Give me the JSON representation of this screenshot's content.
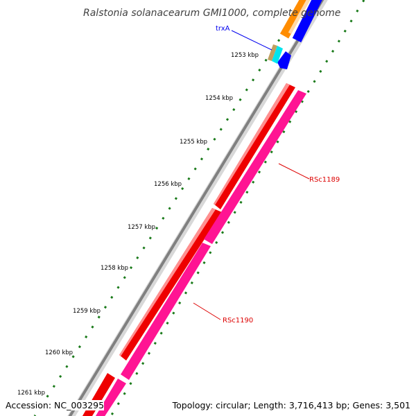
{
  "title": "Ralstonia solanacearum GMI1000, complete genome",
  "kbp_labels": [
    "1253 kbp",
    "1254 kbp",
    "1255 kbp",
    "1256 kbp",
    "1257 kbp",
    "1258 kbp",
    "1259 kbp",
    "1260 kbp",
    "1261 kbp"
  ],
  "genes": [
    {
      "name": "trxA",
      "color": "#0000ee"
    },
    {
      "name": "RSc1189",
      "color": "#dd0000"
    },
    {
      "name": "RSc1190",
      "color": "#dd0000"
    }
  ],
  "feature_colors": {
    "cds_forward": "#ee0000",
    "cds_reverse": "#ff1493",
    "orange": "#ff8c00",
    "blue": "#0000ff",
    "cyan": "#00e5ee",
    "tick_green": "#1a7a1a",
    "backbone": "#808080"
  },
  "footer": {
    "accession": "Accession: NC_003295",
    "stats": "Topology: circular; Length: 3,716,413 bp; Genes: 3,501"
  }
}
